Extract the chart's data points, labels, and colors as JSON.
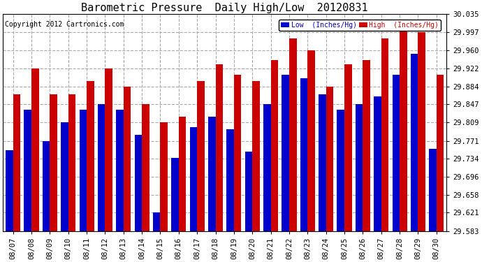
{
  "title": "Barometric Pressure  Daily High/Low  20120831",
  "copyright": "Copyright 2012 Cartronics.com",
  "legend_low_label": "Low  (Inches/Hg)",
  "legend_high_label": "High  (Inches/Hg)",
  "low_color": "#0000cc",
  "high_color": "#cc0000",
  "ylim_min": 29.583,
  "ylim_max": 30.035,
  "yticks": [
    29.583,
    29.621,
    29.658,
    29.696,
    29.734,
    29.771,
    29.809,
    29.847,
    29.884,
    29.922,
    29.96,
    29.997,
    30.035
  ],
  "dates": [
    "08/07",
    "08/08",
    "08/09",
    "08/10",
    "08/11",
    "08/12",
    "08/13",
    "08/14",
    "08/15",
    "08/16",
    "08/17",
    "08/18",
    "08/19",
    "08/20",
    "08/21",
    "08/22",
    "08/23",
    "08/24",
    "08/25",
    "08/26",
    "08/27",
    "08/28",
    "08/29",
    "08/30"
  ],
  "low_values": [
    29.752,
    29.836,
    29.771,
    29.809,
    29.836,
    29.848,
    29.836,
    29.783,
    29.621,
    29.736,
    29.8,
    29.822,
    29.795,
    29.748,
    29.848,
    29.909,
    29.902,
    29.868,
    29.836,
    29.847,
    29.863,
    29.909,
    29.953,
    29.754
  ],
  "high_values": [
    29.868,
    29.922,
    29.868,
    29.868,
    29.895,
    29.922,
    29.884,
    29.848,
    29.809,
    29.822,
    29.895,
    29.93,
    29.909,
    29.895,
    29.94,
    29.984,
    29.96,
    29.884,
    29.93,
    29.94,
    29.984,
    30.016,
    29.997,
    29.909
  ],
  "background_color": "#ffffff",
  "grid_color": "#aaaaaa",
  "tick_label_size": 7.5,
  "title_fontsize": 11
}
